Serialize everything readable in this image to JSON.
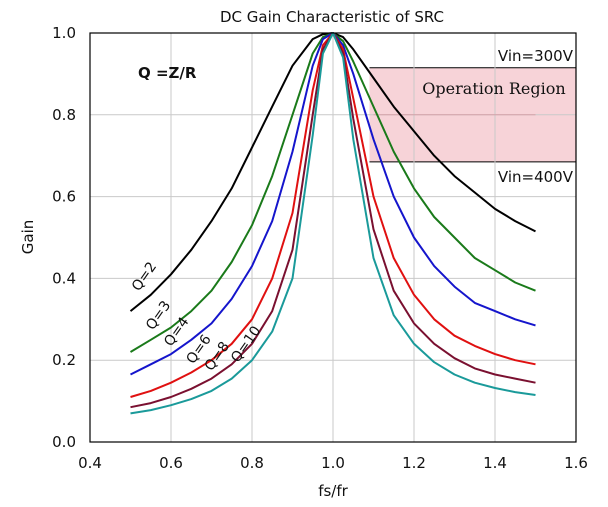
{
  "chart_data": {
    "type": "line",
    "title": "DC Gain Characteristic of SRC",
    "xlabel": "fs/fr",
    "ylabel": "Gain",
    "xlim": [
      0.4,
      1.6
    ],
    "ylim": [
      0.0,
      1.0
    ],
    "x_ticks": [
      "0.4",
      "0.6",
      "0.8",
      "1.0",
      "1.2",
      "1.4",
      "1.6"
    ],
    "y_ticks": [
      "0.0",
      "0.2",
      "0.4",
      "0.6",
      "0.8",
      "1.0"
    ],
    "grid": true,
    "formula_label": "Q =Z/R",
    "x": [
      0.5,
      0.55,
      0.6,
      0.65,
      0.7,
      0.75,
      0.8,
      0.85,
      0.9,
      0.95,
      0.975,
      1.0,
      1.025,
      1.05,
      1.1,
      1.15,
      1.2,
      1.25,
      1.3,
      1.35,
      1.4,
      1.45,
      1.5
    ],
    "series": [
      {
        "name": "Q=2",
        "color": "#000000",
        "values": [
          0.32,
          0.36,
          0.41,
          0.47,
          0.54,
          0.62,
          0.72,
          0.82,
          0.92,
          0.985,
          0.997,
          1.0,
          0.99,
          0.96,
          0.89,
          0.82,
          0.76,
          0.7,
          0.65,
          0.61,
          0.57,
          0.54,
          0.515
        ]
      },
      {
        "name": "Q=3",
        "color": "#1a7a1a",
        "values": [
          0.22,
          0.25,
          0.28,
          0.32,
          0.37,
          0.44,
          0.53,
          0.65,
          0.8,
          0.95,
          0.99,
          1.0,
          0.98,
          0.93,
          0.82,
          0.71,
          0.62,
          0.55,
          0.5,
          0.45,
          0.42,
          0.39,
          0.37
        ]
      },
      {
        "name": "Q=4",
        "color": "#1515cc",
        "values": [
          0.165,
          0.19,
          0.215,
          0.25,
          0.29,
          0.35,
          0.43,
          0.54,
          0.71,
          0.92,
          0.985,
          1.0,
          0.97,
          0.9,
          0.74,
          0.6,
          0.5,
          0.43,
          0.38,
          0.34,
          0.32,
          0.3,
          0.285
        ]
      },
      {
        "name": "Q=6",
        "color": "#e01010",
        "values": [
          0.11,
          0.125,
          0.145,
          0.17,
          0.2,
          0.24,
          0.3,
          0.4,
          0.56,
          0.86,
          0.97,
          1.0,
          0.96,
          0.84,
          0.6,
          0.45,
          0.36,
          0.3,
          0.26,
          0.235,
          0.215,
          0.2,
          0.19
        ]
      },
      {
        "name": "Q=8",
        "color": "#7a1030",
        "values": [
          0.085,
          0.095,
          0.11,
          0.13,
          0.155,
          0.19,
          0.24,
          0.32,
          0.47,
          0.8,
          0.96,
          1.0,
          0.95,
          0.79,
          0.52,
          0.37,
          0.29,
          0.24,
          0.205,
          0.18,
          0.165,
          0.155,
          0.145
        ]
      },
      {
        "name": "Q=10",
        "color": "#1a9a9a",
        "values": [
          0.07,
          0.078,
          0.09,
          0.105,
          0.125,
          0.155,
          0.2,
          0.27,
          0.4,
          0.75,
          0.95,
          1.0,
          0.94,
          0.74,
          0.45,
          0.31,
          0.24,
          0.195,
          0.165,
          0.145,
          0.132,
          0.122,
          0.115
        ]
      }
    ],
    "annotations": {
      "operation_region": {
        "label": "Operation Region",
        "x_start": 1.09,
        "x_end": 1.5,
        "y_top": 0.915,
        "y_bottom": 0.685,
        "fill": "#f7d3d8"
      },
      "vin_300": {
        "label": "Vin=300V",
        "y": 0.915
      },
      "vin_400": {
        "label": "Vin=400V",
        "y": 0.685
      }
    }
  }
}
